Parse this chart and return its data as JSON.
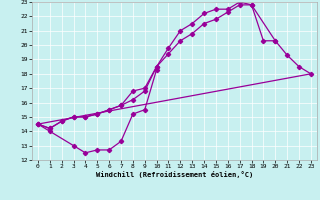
{
  "title": "",
  "xlabel": "Windchill (Refroidissement éolien,°C)",
  "bg_color": "#c8f0f0",
  "line_color": "#990099",
  "xlim": [
    -0.5,
    23.5
  ],
  "ylim": [
    12,
    23
  ],
  "xticks": [
    0,
    1,
    2,
    3,
    4,
    5,
    6,
    7,
    8,
    9,
    10,
    11,
    12,
    13,
    14,
    15,
    16,
    17,
    18,
    19,
    20,
    21,
    22,
    23
  ],
  "yticks": [
    12,
    13,
    14,
    15,
    16,
    17,
    18,
    19,
    20,
    21,
    22,
    23
  ],
  "series": [
    {
      "x": [
        0,
        1,
        3,
        4,
        5,
        6,
        7,
        8,
        9,
        10
      ],
      "y": [
        14.5,
        14.0,
        13.0,
        12.5,
        12.7,
        12.7,
        13.3,
        15.2,
        15.5,
        18.3
      ]
    },
    {
      "x": [
        0,
        1,
        2,
        3,
        4,
        5,
        6,
        7,
        8,
        9,
        10,
        11,
        12,
        13,
        14,
        15,
        16,
        17,
        18,
        19,
        20,
        21,
        22,
        23
      ],
      "y": [
        14.5,
        14.2,
        14.7,
        15.0,
        15.0,
        15.2,
        15.5,
        15.8,
        16.2,
        16.8,
        18.5,
        19.4,
        20.3,
        20.8,
        21.5,
        21.8,
        22.3,
        22.8,
        22.8,
        20.3,
        20.3,
        19.3,
        18.5,
        18.0
      ]
    },
    {
      "x": [
        0,
        1,
        2,
        3,
        4,
        5,
        6,
        7,
        8,
        9,
        10,
        11,
        12,
        13,
        14,
        15,
        16,
        17,
        18,
        20
      ],
      "y": [
        14.5,
        14.2,
        14.7,
        15.0,
        15.0,
        15.2,
        15.5,
        15.8,
        16.8,
        17.0,
        18.5,
        19.8,
        21.0,
        21.5,
        22.2,
        22.5,
        22.5,
        23.0,
        22.8,
        20.3
      ]
    },
    {
      "x": [
        0,
        23
      ],
      "y": [
        14.5,
        18.0
      ]
    }
  ]
}
